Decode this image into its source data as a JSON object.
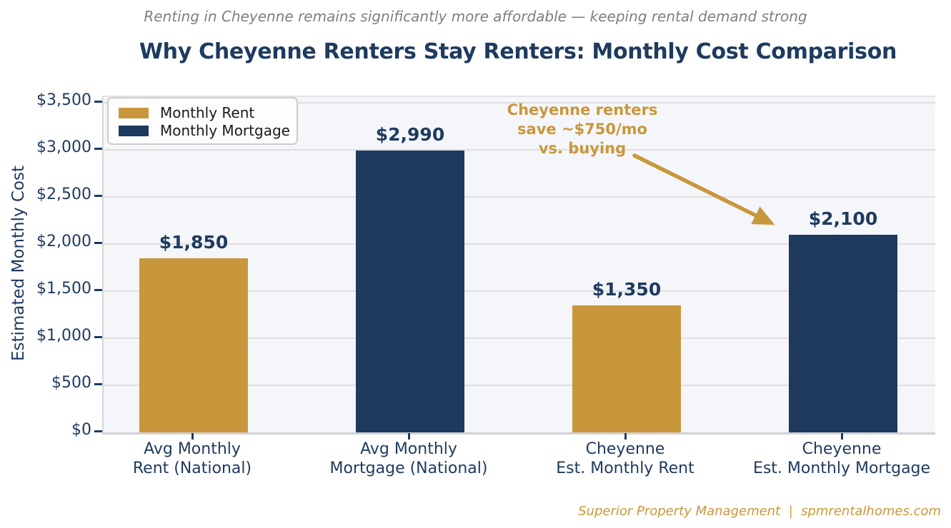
{
  "header": {
    "subtitle": "Renting in Cheyenne remains significantly more affordable — keeping rental demand strong",
    "title": "Why Cheyenne Renters Stay Renters: Monthly Cost Comparison"
  },
  "footer": {
    "branding": "Superior Property Management  |  spmrentalhomes.com"
  },
  "colors": {
    "rent_gold": "#C8973C",
    "mortgage_navy": "#1E3A5F",
    "title_navy": "#1E3A5F",
    "subtitle_gray": "#7F7F7F",
    "annotation_gold": "#C8973C",
    "plot_background": "#F5F6F9",
    "gridline_gray": "#DEDEDF"
  },
  "legend": {
    "position": "upper left",
    "items": [
      {
        "label": "Monthly Rent",
        "color": "#C8973C"
      },
      {
        "label": "Monthly Mortgage",
        "color": "#1E3A5F"
      }
    ]
  },
  "annotation": {
    "lines": [
      "Cheyenne renters",
      "save ~$750/mo",
      "vs. buying"
    ],
    "points_to": "Cheyenne Est. Monthly Mortgage bar"
  },
  "chart_data": {
    "type": "bar",
    "title": "Why Cheyenne Renters Stay Renters: Monthly Cost Comparison",
    "subtitle": "Renting in Cheyenne remains significantly more affordable — keeping rental demand strong",
    "categories": [
      [
        "Avg Monthly",
        "Rent (National)"
      ],
      [
        "Avg Monthly",
        "Mortgage (National)"
      ],
      [
        "Cheyenne",
        "Est. Monthly Rent"
      ],
      [
        "Cheyenne",
        "Est. Monthly Mortgage"
      ]
    ],
    "values": [
      1850,
      2990,
      1350,
      2100
    ],
    "value_labels": [
      "$1,850",
      "$2,990",
      "$1,350",
      "$2,100"
    ],
    "bar_series": [
      "Monthly Rent",
      "Monthly Mortgage",
      "Monthly Rent",
      "Monthly Mortgage"
    ],
    "bar_colors": [
      "#C8973C",
      "#1E3A5F",
      "#C8973C",
      "#1E3A5F"
    ],
    "xlabel": "",
    "ylabel": "Estimated Monthly Cost",
    "ylim": [
      0,
      3500
    ],
    "ytick_values": [
      0,
      500,
      1000,
      1500,
      2000,
      2500,
      3000,
      3500
    ],
    "ytick_labels": [
      "$0",
      "$500",
      "$1,000",
      "$1,500",
      "$2,000",
      "$2,500",
      "$3,000",
      "$3,500"
    ],
    "grid": true,
    "legend_position": "upper left"
  }
}
